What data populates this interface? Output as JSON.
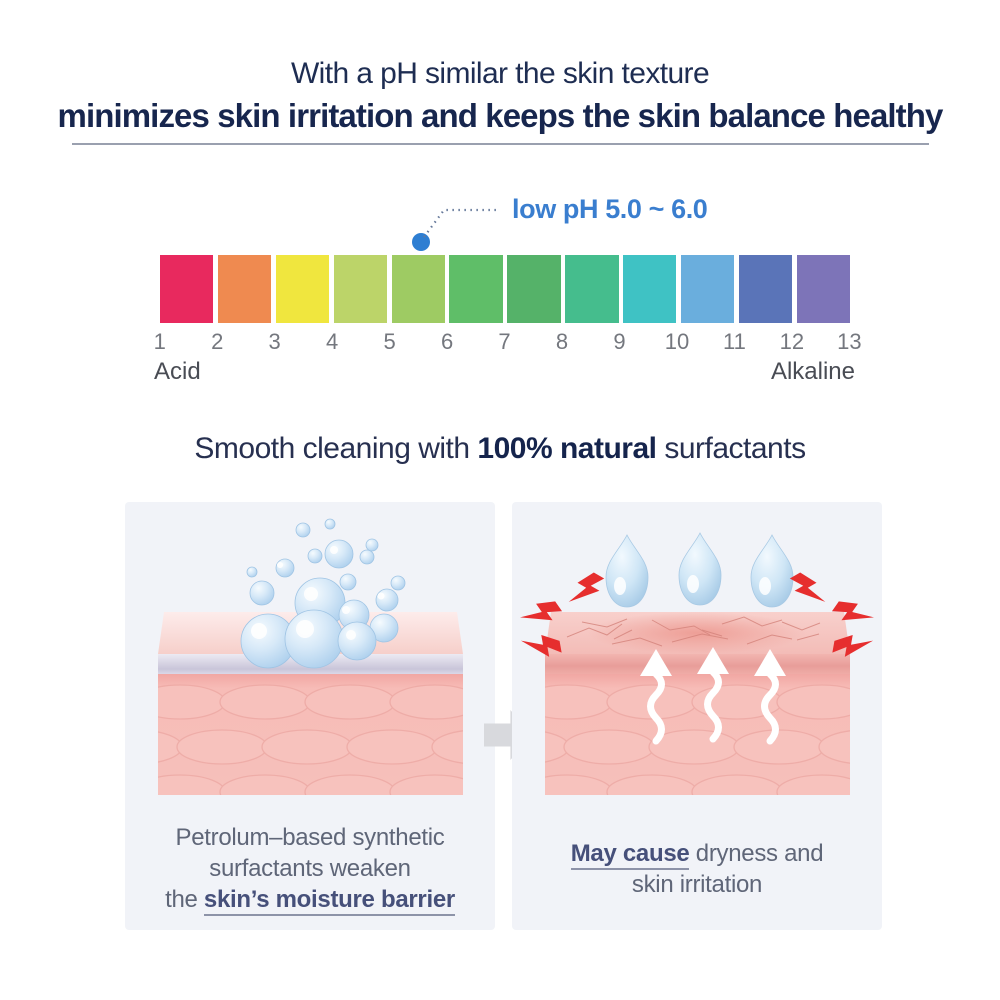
{
  "header": {
    "line1": "With a pH similar the skin texture",
    "line2": "minimizes skin irritation and keeps the skin balance healthy"
  },
  "ph_scale": {
    "annotation": "low pH 5.0 ~ 6.0",
    "annotation_color": "#3a7ecf",
    "segment_colors": [
      "#e8295e",
      "#ef8a50",
      "#f0e63e",
      "#bcd469",
      "#9ecb63",
      "#5fbe68",
      "#55b269",
      "#45bd8d",
      "#3fc2c4",
      "#6aaedd",
      "#5a74b8",
      "#7d74b8"
    ],
    "tick_labels": [
      "1",
      "2",
      "3",
      "4",
      "5",
      "6",
      "7",
      "8",
      "9",
      "10",
      "11",
      "12",
      "13"
    ],
    "left_label": "Acid",
    "right_label": "Alkaline"
  },
  "section2": {
    "prefix": "Smooth cleaning with ",
    "bold": "100% natural",
    "suffix": " surfactants"
  },
  "panels": {
    "left": {
      "line1": "Petrolum–based synthetic",
      "line2": "surfactants weaken",
      "line3_prefix": "the ",
      "line3_bold": "skin’s moisture barrier"
    },
    "right": {
      "line1_bold": "May cause",
      "line1_rest": " dryness and",
      "line2": "skin irritation"
    }
  }
}
